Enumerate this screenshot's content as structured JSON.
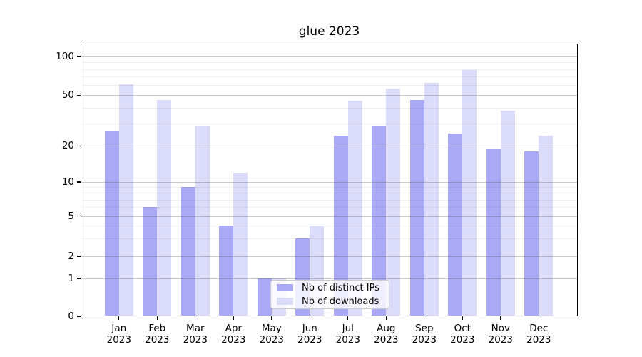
{
  "title": "glue 2023",
  "chart_data": {
    "type": "bar",
    "title": "glue 2023",
    "categories": [
      "Jan",
      "Feb",
      "Mar",
      "Apr",
      "May",
      "Jun",
      "Jul",
      "Aug",
      "Sep",
      "Oct",
      "Nov",
      "Dec"
    ],
    "x_year_line": "2023",
    "series": [
      {
        "name": "Nb of distinct IPs",
        "color": "#a9a9f5",
        "values": [
          26,
          6,
          9,
          4,
          1,
          3,
          24,
          29,
          46,
          25,
          19,
          18
        ]
      },
      {
        "name": "Nb of downloads",
        "color": "#dbdbfa",
        "values": [
          61,
          46,
          29,
          12,
          1,
          4,
          45,
          56,
          62,
          78,
          38,
          24
        ]
      }
    ],
    "xlabel": "",
    "ylabel": "",
    "y_axis": {
      "scale": "symlog",
      "major_ticks": [
        0,
        1,
        2,
        5,
        10,
        20,
        50,
        100
      ],
      "minor_ticks": [
        3,
        4,
        6,
        7,
        8,
        9,
        30,
        40,
        60,
        70,
        80,
        90
      ],
      "range": [
        0,
        126
      ]
    },
    "grid": true,
    "legend": {
      "position": "inside-bottom-center",
      "entries": [
        "Nb of distinct IPs",
        "Nb of downloads"
      ]
    }
  }
}
